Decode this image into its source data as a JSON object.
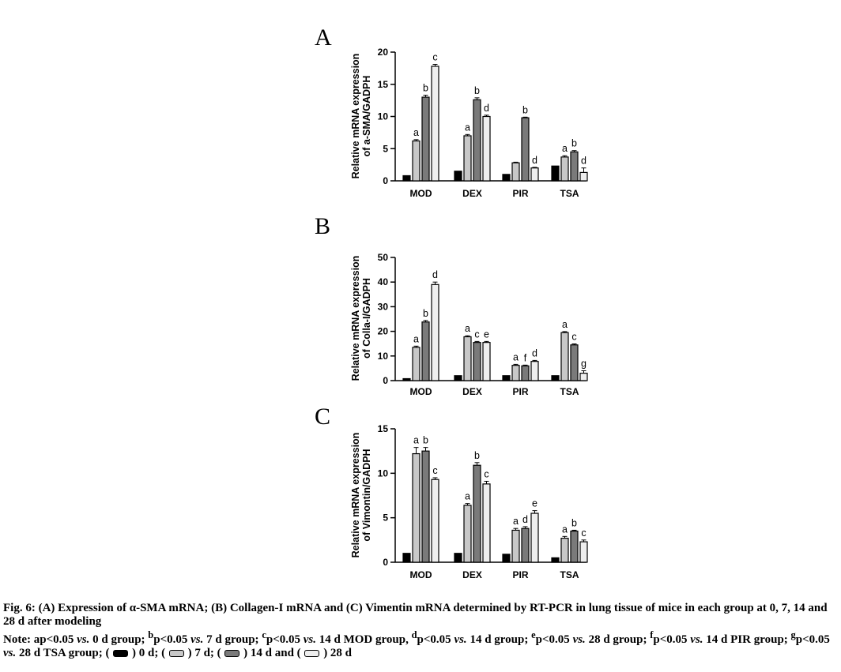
{
  "chart_data": [
    {
      "type": "bar",
      "panel_label": "A",
      "ylabel": [
        "Relative mRNA expression",
        "of a-SMA/GADPH"
      ],
      "categories": [
        "MOD",
        "DEX",
        "PIR",
        "TSA"
      ],
      "ylim": [
        0,
        20
      ],
      "yticks": [
        "0",
        "5",
        "10",
        "15",
        "20"
      ],
      "series": [
        {
          "values": [
            0.8,
            1.5,
            1.0,
            2.3
          ],
          "errors": [
            0,
            0,
            0,
            0
          ],
          "labels": [
            "",
            "",
            "",
            ""
          ]
        },
        {
          "values": [
            6.2,
            7.0,
            2.8,
            3.7
          ],
          "errors": [
            0.2,
            0.2,
            0.1,
            0.2
          ],
          "labels": [
            "a",
            "a",
            "",
            "a"
          ]
        },
        {
          "values": [
            13.0,
            12.6,
            9.8,
            4.5
          ],
          "errors": [
            0.3,
            0.3,
            0.1,
            0.2
          ],
          "labels": [
            "b",
            "b",
            "b",
            "b"
          ]
        },
        {
          "values": [
            17.8,
            10.0,
            2.0,
            1.3
          ],
          "errors": [
            0.3,
            0.2,
            0.1,
            0.7
          ],
          "labels": [
            "c",
            "d",
            "d",
            "d"
          ]
        }
      ]
    },
    {
      "type": "bar",
      "panel_label": "B",
      "ylabel": [
        "Relative mRNA expression",
        "of Colla-I/GADPH"
      ],
      "categories": [
        "MOD",
        "DEX",
        "PIR",
        "TSA"
      ],
      "ylim": [
        0,
        50
      ],
      "yticks": [
        "0",
        "10",
        "20",
        "30",
        "40",
        "50"
      ],
      "series": [
        {
          "values": [
            0.8,
            2.0,
            2.0,
            2.0
          ],
          "errors": [
            0,
            0,
            0,
            0
          ],
          "labels": [
            "",
            "",
            "",
            ""
          ]
        },
        {
          "values": [
            13.5,
            17.8,
            6.2,
            19.5
          ],
          "errors": [
            0.5,
            0.4,
            0.4,
            0.4
          ],
          "labels": [
            "a",
            "a",
            "a",
            "a"
          ]
        },
        {
          "values": [
            23.8,
            15.5,
            6.0,
            14.5
          ],
          "errors": [
            0.6,
            0.4,
            0.3,
            0.4
          ],
          "labels": [
            "b",
            "c",
            "f",
            "c"
          ]
        },
        {
          "values": [
            39.0,
            15.5,
            7.8,
            3.0
          ],
          "errors": [
            1.0,
            0.4,
            0.4,
            1.0
          ],
          "labels": [
            "d",
            "e",
            "d",
            "g"
          ]
        }
      ]
    },
    {
      "type": "bar",
      "panel_label": "C",
      "ylabel": [
        "Relative mRNA expression",
        "of Vimontin/GADPH"
      ],
      "categories": [
        "MOD",
        "DEX",
        "PIR",
        "TSA"
      ],
      "ylim": [
        0,
        15
      ],
      "yticks": [
        "0",
        "5",
        "10",
        "15"
      ],
      "series": [
        {
          "values": [
            1.0,
            1.0,
            0.9,
            0.5
          ],
          "errors": [
            0,
            0,
            0,
            0
          ],
          "labels": [
            "",
            "",
            "",
            ""
          ]
        },
        {
          "values": [
            12.2,
            6.4,
            3.6,
            2.7
          ],
          "errors": [
            0.7,
            0.2,
            0.2,
            0.2
          ],
          "labels": [
            "a",
            "a",
            "a",
            "a"
          ]
        },
        {
          "values": [
            12.5,
            10.9,
            3.8,
            3.5
          ],
          "errors": [
            0.4,
            0.3,
            0.2,
            0.1
          ],
          "labels": [
            "b",
            "b",
            "d",
            "b"
          ]
        },
        {
          "values": [
            9.3,
            8.8,
            5.5,
            2.3
          ],
          "errors": [
            0.2,
            0.3,
            0.3,
            0.2
          ],
          "labels": [
            "c",
            "c",
            "e",
            "c"
          ]
        }
      ]
    }
  ],
  "series_colors": [
    "#000000",
    "#c8c8c8",
    "#7a7a7a",
    "#eeeeee"
  ],
  "caption": {
    "line1": "Fig. 6: (A) Expression of α-SMA mRNA; (B) Collagen-I mRNA and (C) Vimentin mRNA determined by RT-PCR in lung tissue of mice in each group at 0, 7, 14 and 28 d after modeling",
    "note_prefix": "Note: ap<0.05 ",
    "note_b_sup": "b",
    "note_b": "p<0.05 ",
    "note_c_sup": "c",
    "note_c": "p<0.05 ",
    "note_c_tail": " 14 d MOD group, ",
    "note_d_sup": "d",
    "note_d": "p<0.05 ",
    "note_d_tail": " 14 d group; ",
    "note_e_sup": "e",
    "note_e": "p<0.05 ",
    "note_e_tail": " 28 d group; ",
    "note_f_sup": "f",
    "note_f": "p<0.05 ",
    "note_f_tail": " 14 d PIR group; ",
    "note_g_sup": "g",
    "note_g": "p<0.05 ",
    "note_g_tail": " 28 d TSA group; ",
    "vs": "vs.",
    "a_tail": " 0 d group; ",
    "b_tail": " 7 d group; ",
    "legend_0d": ") 0 d; (",
    "legend_7d": ") 7 d; (",
    "legend_14d": ") 14 d and (",
    "legend_28d": ") 28 d",
    "open_paren": "("
  }
}
